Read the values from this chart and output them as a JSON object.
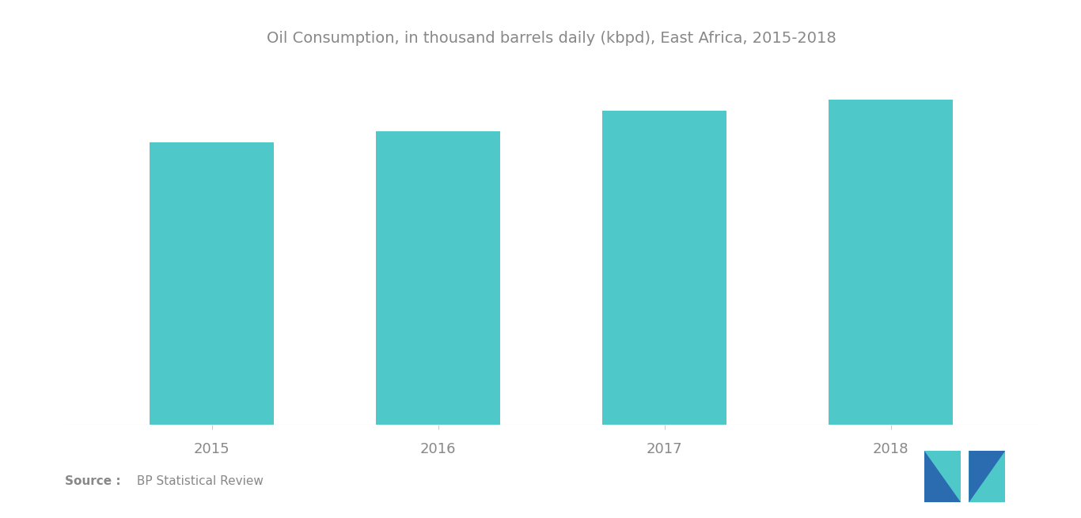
{
  "title": "Oil Consumption, in thousand barrels daily (kbpd), East Africa, 2015-2018",
  "categories": [
    "2015",
    "2016",
    "2017",
    "2018"
  ],
  "values": [
    490,
    510,
    545,
    565
  ],
  "bar_color": "#4EC8C8",
  "background_color": "#ffffff",
  "title_fontsize": 14,
  "tick_fontsize": 13,
  "source_bold": "Source :",
  "source_normal": " BP Statistical Review",
  "ylim": [
    0,
    630
  ],
  "bar_width": 0.55,
  "logo_dark": "#2B6CB0",
  "logo_teal": "#4EC8C8",
  "text_color": "#888888"
}
